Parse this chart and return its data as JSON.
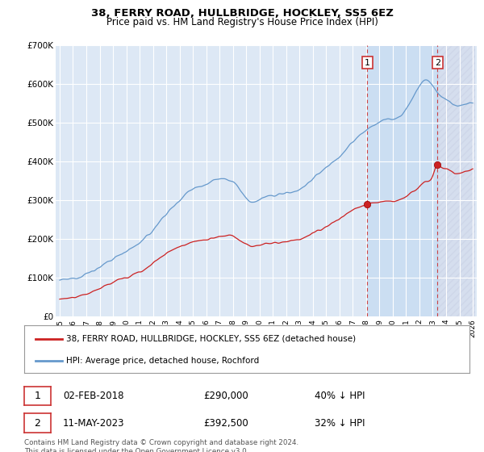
{
  "title": "38, FERRY ROAD, HULLBRIDGE, HOCKLEY, SS5 6EZ",
  "subtitle": "Price paid vs. HM Land Registry's House Price Index (HPI)",
  "legend_line1": "38, FERRY ROAD, HULLBRIDGE, HOCKLEY, SS5 6EZ (detached house)",
  "legend_line2": "HPI: Average price, detached house, Rochford",
  "annotation1_date": "02-FEB-2018",
  "annotation1_price": "£290,000",
  "annotation1_hpi": "40% ↓ HPI",
  "annotation2_date": "11-MAY-2023",
  "annotation2_price": "£392,500",
  "annotation2_hpi": "32% ↓ HPI",
  "footnote": "Contains HM Land Registry data © Crown copyright and database right 2024.\nThis data is licensed under the Open Government Licence v3.0.",
  "ylim": [
    0,
    700000
  ],
  "hpi_color": "#6699cc",
  "price_color": "#cc2222",
  "dashed_color": "#cc3333",
  "bg_color": "#dde8f5",
  "bg_shaded_color": "#cddaf0",
  "sale1_x": 2018.09,
  "sale1_y": 290000,
  "sale2_x": 2023.36,
  "sale2_y": 392500,
  "xmin": 1995,
  "xmax": 2026
}
